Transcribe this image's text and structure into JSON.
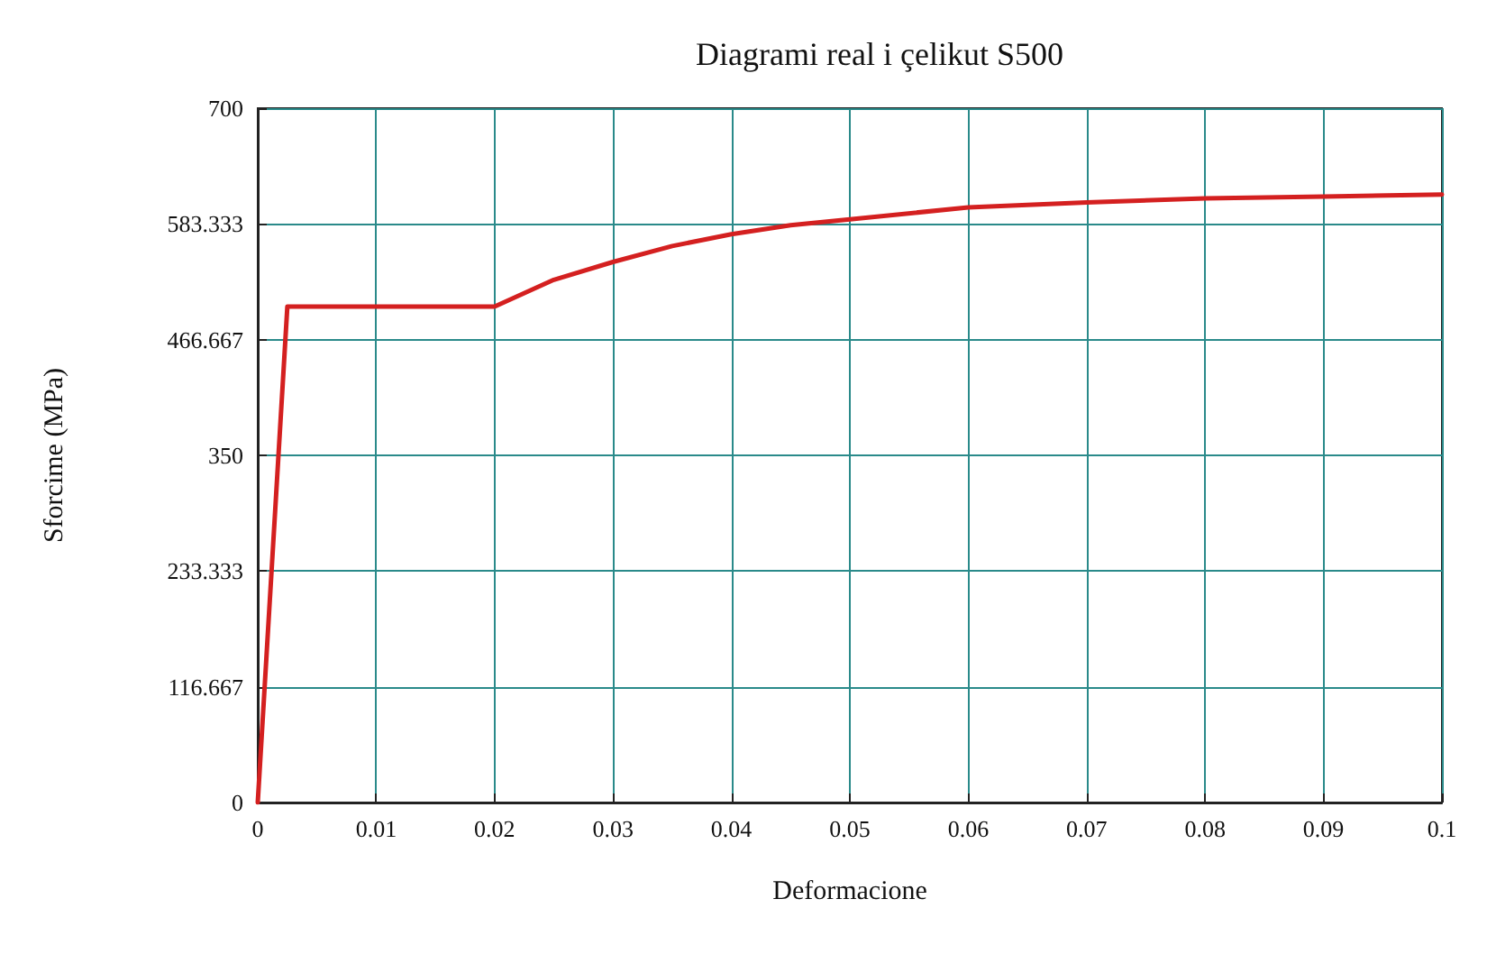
{
  "chart_data": {
    "type": "line",
    "title": "Diagrami real i çelikut S500",
    "xlabel": "Deformacione",
    "ylabel": "Sforcime (MPa)",
    "x": [
      0,
      0.0025,
      0.02,
      0.025,
      0.03,
      0.035,
      0.04,
      0.045,
      0.05,
      0.06,
      0.07,
      0.08,
      0.09,
      0.1
    ],
    "series": [
      {
        "color": "#d42020",
        "values": [
          0,
          500,
          500,
          527,
          545,
          561,
          573,
          582,
          588,
          600,
          605,
          609,
          611,
          613
        ]
      }
    ],
    "xlim": [
      0,
      0.1
    ],
    "xticks": [
      0,
      0.01,
      0.02,
      0.03,
      0.04,
      0.05,
      0.06,
      0.07,
      0.08,
      0.09,
      0.1
    ],
    "ylim": [
      0,
      700
    ],
    "yticks": [
      0,
      116.667,
      233.333,
      350,
      466.667,
      583.333,
      700
    ],
    "grid": true,
    "marker": "none",
    "line_style": "solid"
  }
}
